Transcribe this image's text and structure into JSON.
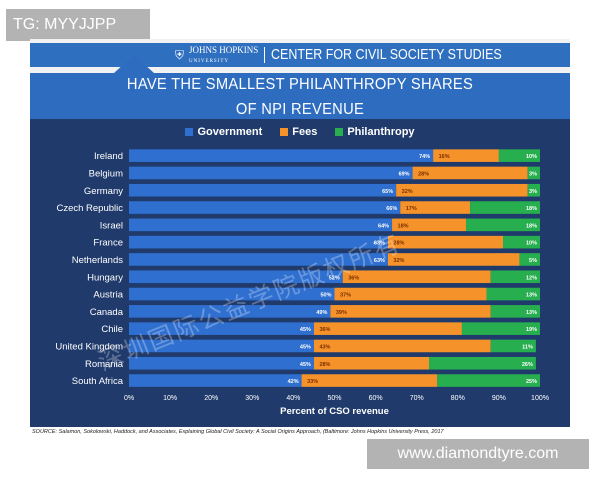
{
  "tag": "TG: MYYJJPP",
  "header": {
    "university": "JOHNS HOPKINS",
    "university_sub": "UNIVERSITY",
    "center_name": "CENTER FOR CIVIL SOCIETY STUDIES"
  },
  "title_line1": "HAVE THE SMALLEST PHILANTHROPY SHARES",
  "title_line2": "OF NPI REVENUE",
  "source": "SOURCE: Salamon, Sokolowski, Haddock, and Associates, Explaining Global Civil Society: A Social Origins Approach, (Baltimore: Johns Hopkins University Press, 2017",
  "watermark_text": "深圳国际公益学院版权所有",
  "url": "www.diamondtyre.com",
  "colors": {
    "background": "#1f3a6b",
    "government": "#2f6fd0",
    "fees": "#f5922a",
    "philanthropy": "#27ae4f",
    "text": "#ffffff"
  },
  "chart_data": {
    "type": "bar",
    "orientation": "horizontal",
    "stacked": true,
    "categories": [
      "Ireland",
      "Belgium",
      "Germany",
      "Czech Republic",
      "Israel",
      "France",
      "Netherlands",
      "Hungary",
      "Austria",
      "Canada",
      "Chile",
      "United Kingdom",
      "Romania",
      "South Africa"
    ],
    "series": [
      {
        "name": "Government",
        "color": "#2f6fd0",
        "values": [
          74,
          69,
          65,
          66,
          64,
          63,
          63,
          52,
          50,
          49,
          45,
          45,
          45,
          42
        ]
      },
      {
        "name": "Fees",
        "color": "#f5922a",
        "values": [
          16,
          28,
          32,
          17,
          18,
          28,
          32,
          36,
          37,
          39,
          36,
          43,
          28,
          33
        ]
      },
      {
        "name": "Philanthropy",
        "color": "#27ae4f",
        "values": [
          10,
          3,
          3,
          18,
          18,
          10,
          5,
          12,
          13,
          13,
          19,
          11,
          26,
          25
        ]
      }
    ],
    "data_labels": [
      [
        "74%",
        "16%",
        "10%"
      ],
      [
        "69%",
        "28%",
        "3%"
      ],
      [
        "65%",
        "32%",
        "3%"
      ],
      [
        "66%",
        "17%",
        "18%"
      ],
      [
        "64%",
        "18%",
        "18%"
      ],
      [
        "63%",
        "28%",
        "10%"
      ],
      [
        "63%",
        "32%",
        "5%"
      ],
      [
        "52%",
        "36%",
        "12%"
      ],
      [
        "50%",
        "37%",
        "13%"
      ],
      [
        "49%",
        "39%",
        "13%"
      ],
      [
        "45%",
        "36%",
        "19%"
      ],
      [
        "45%",
        "43%",
        "11%"
      ],
      [
        "45%",
        "28%",
        "26%"
      ],
      [
        "42%",
        "33%",
        "25%"
      ]
    ],
    "xlabel": "Percent of CSO revenue",
    "ylabel": "",
    "xlim": [
      0,
      100
    ],
    "xticks": [
      "0%",
      "10%",
      "20%",
      "30%",
      "40%",
      "50%",
      "60%",
      "70%",
      "80%",
      "90%",
      "100%"
    ],
    "legend": {
      "position": "top",
      "entries": [
        "Government",
        "Fees",
        "Philanthropy"
      ]
    },
    "grid": false
  }
}
